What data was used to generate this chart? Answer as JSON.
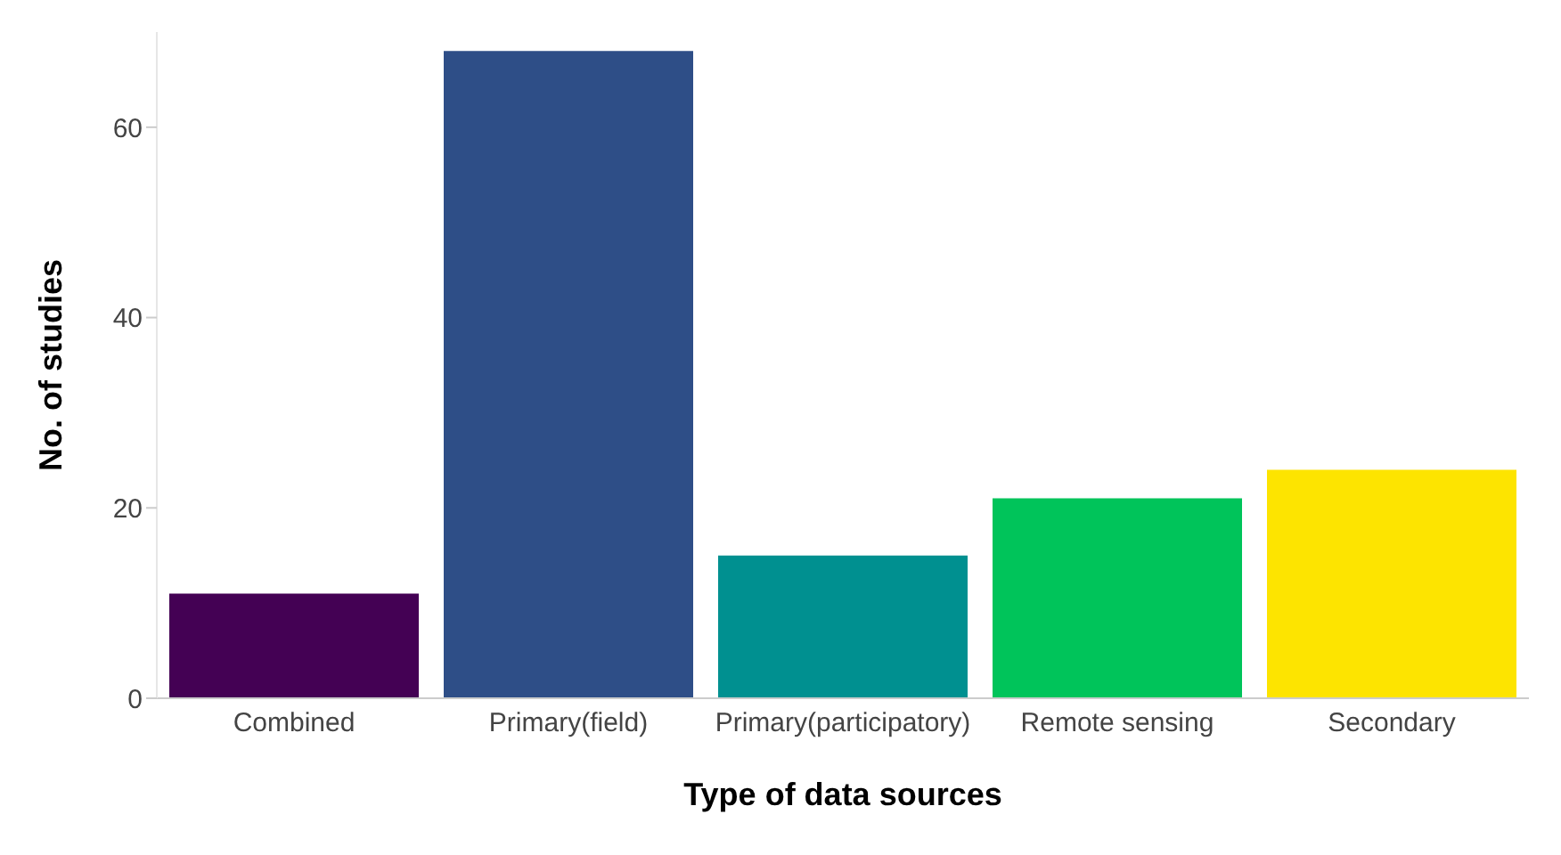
{
  "chart_data": {
    "type": "bar",
    "xlabel": "Type of data sources",
    "ylabel": "No. of studies",
    "categories": [
      "Combined",
      "Primary(field)",
      "Primary(participatory)",
      "Remote sensing",
      "Secondary"
    ],
    "values": [
      11,
      68,
      15,
      21,
      24
    ],
    "colors": [
      "#440154",
      "#2e4e87",
      "#009090",
      "#00c45a",
      "#fde400"
    ],
    "ylim": [
      0,
      70
    ],
    "yticks": [
      0,
      20,
      40,
      60
    ],
    "grid": false,
    "legend": false
  }
}
